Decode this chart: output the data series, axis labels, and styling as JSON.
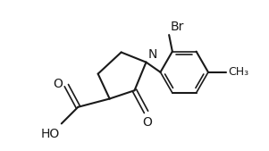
{
  "bg_color": "#ffffff",
  "line_color": "#1a1a1a",
  "line_width": 1.5,
  "text_color": "#1a1a1a",
  "font_size": 9,
  "xlim": [
    -2.8,
    3.2
  ],
  "ylim": [
    -2.6,
    1.8
  ]
}
